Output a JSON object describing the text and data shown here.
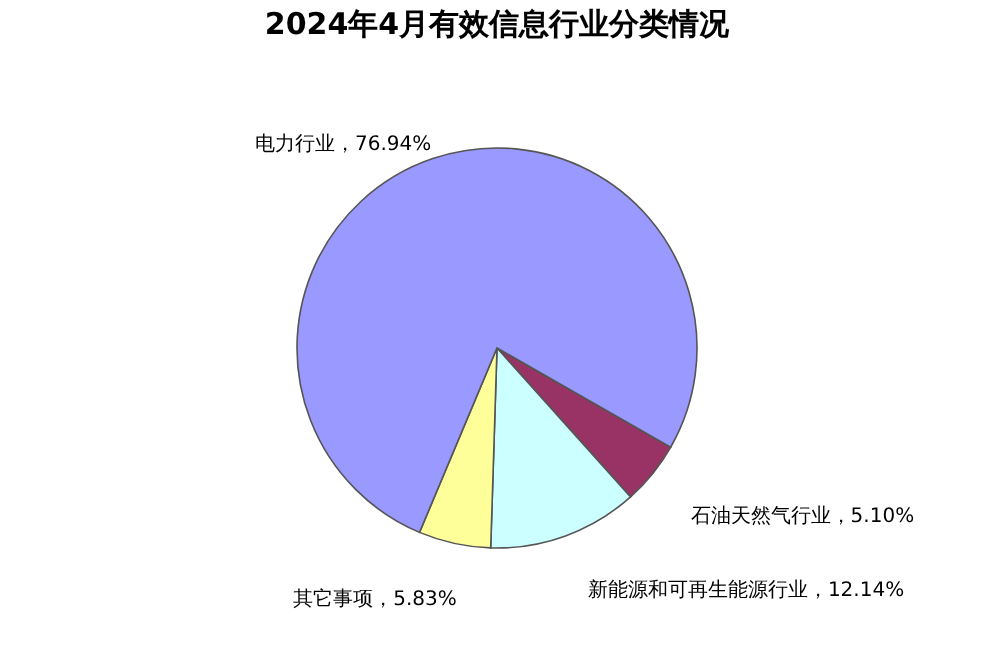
{
  "chart_data": {
    "type": "pie",
    "title": "2024年4月有效信息行业分类情况",
    "categories": [
      "石油天然气行业",
      "新能源和可再生能源行业",
      "其它事项",
      "电力行业"
    ],
    "values": [
      5.1,
      12.14,
      5.83,
      76.94
    ],
    "colors": [
      "#993366",
      "#ccffff",
      "#ffff99",
      "#9999ff"
    ],
    "value_labels": [
      "5.10%",
      "12.14%",
      "5.83%",
      "76.94%"
    ],
    "legend": false
  }
}
